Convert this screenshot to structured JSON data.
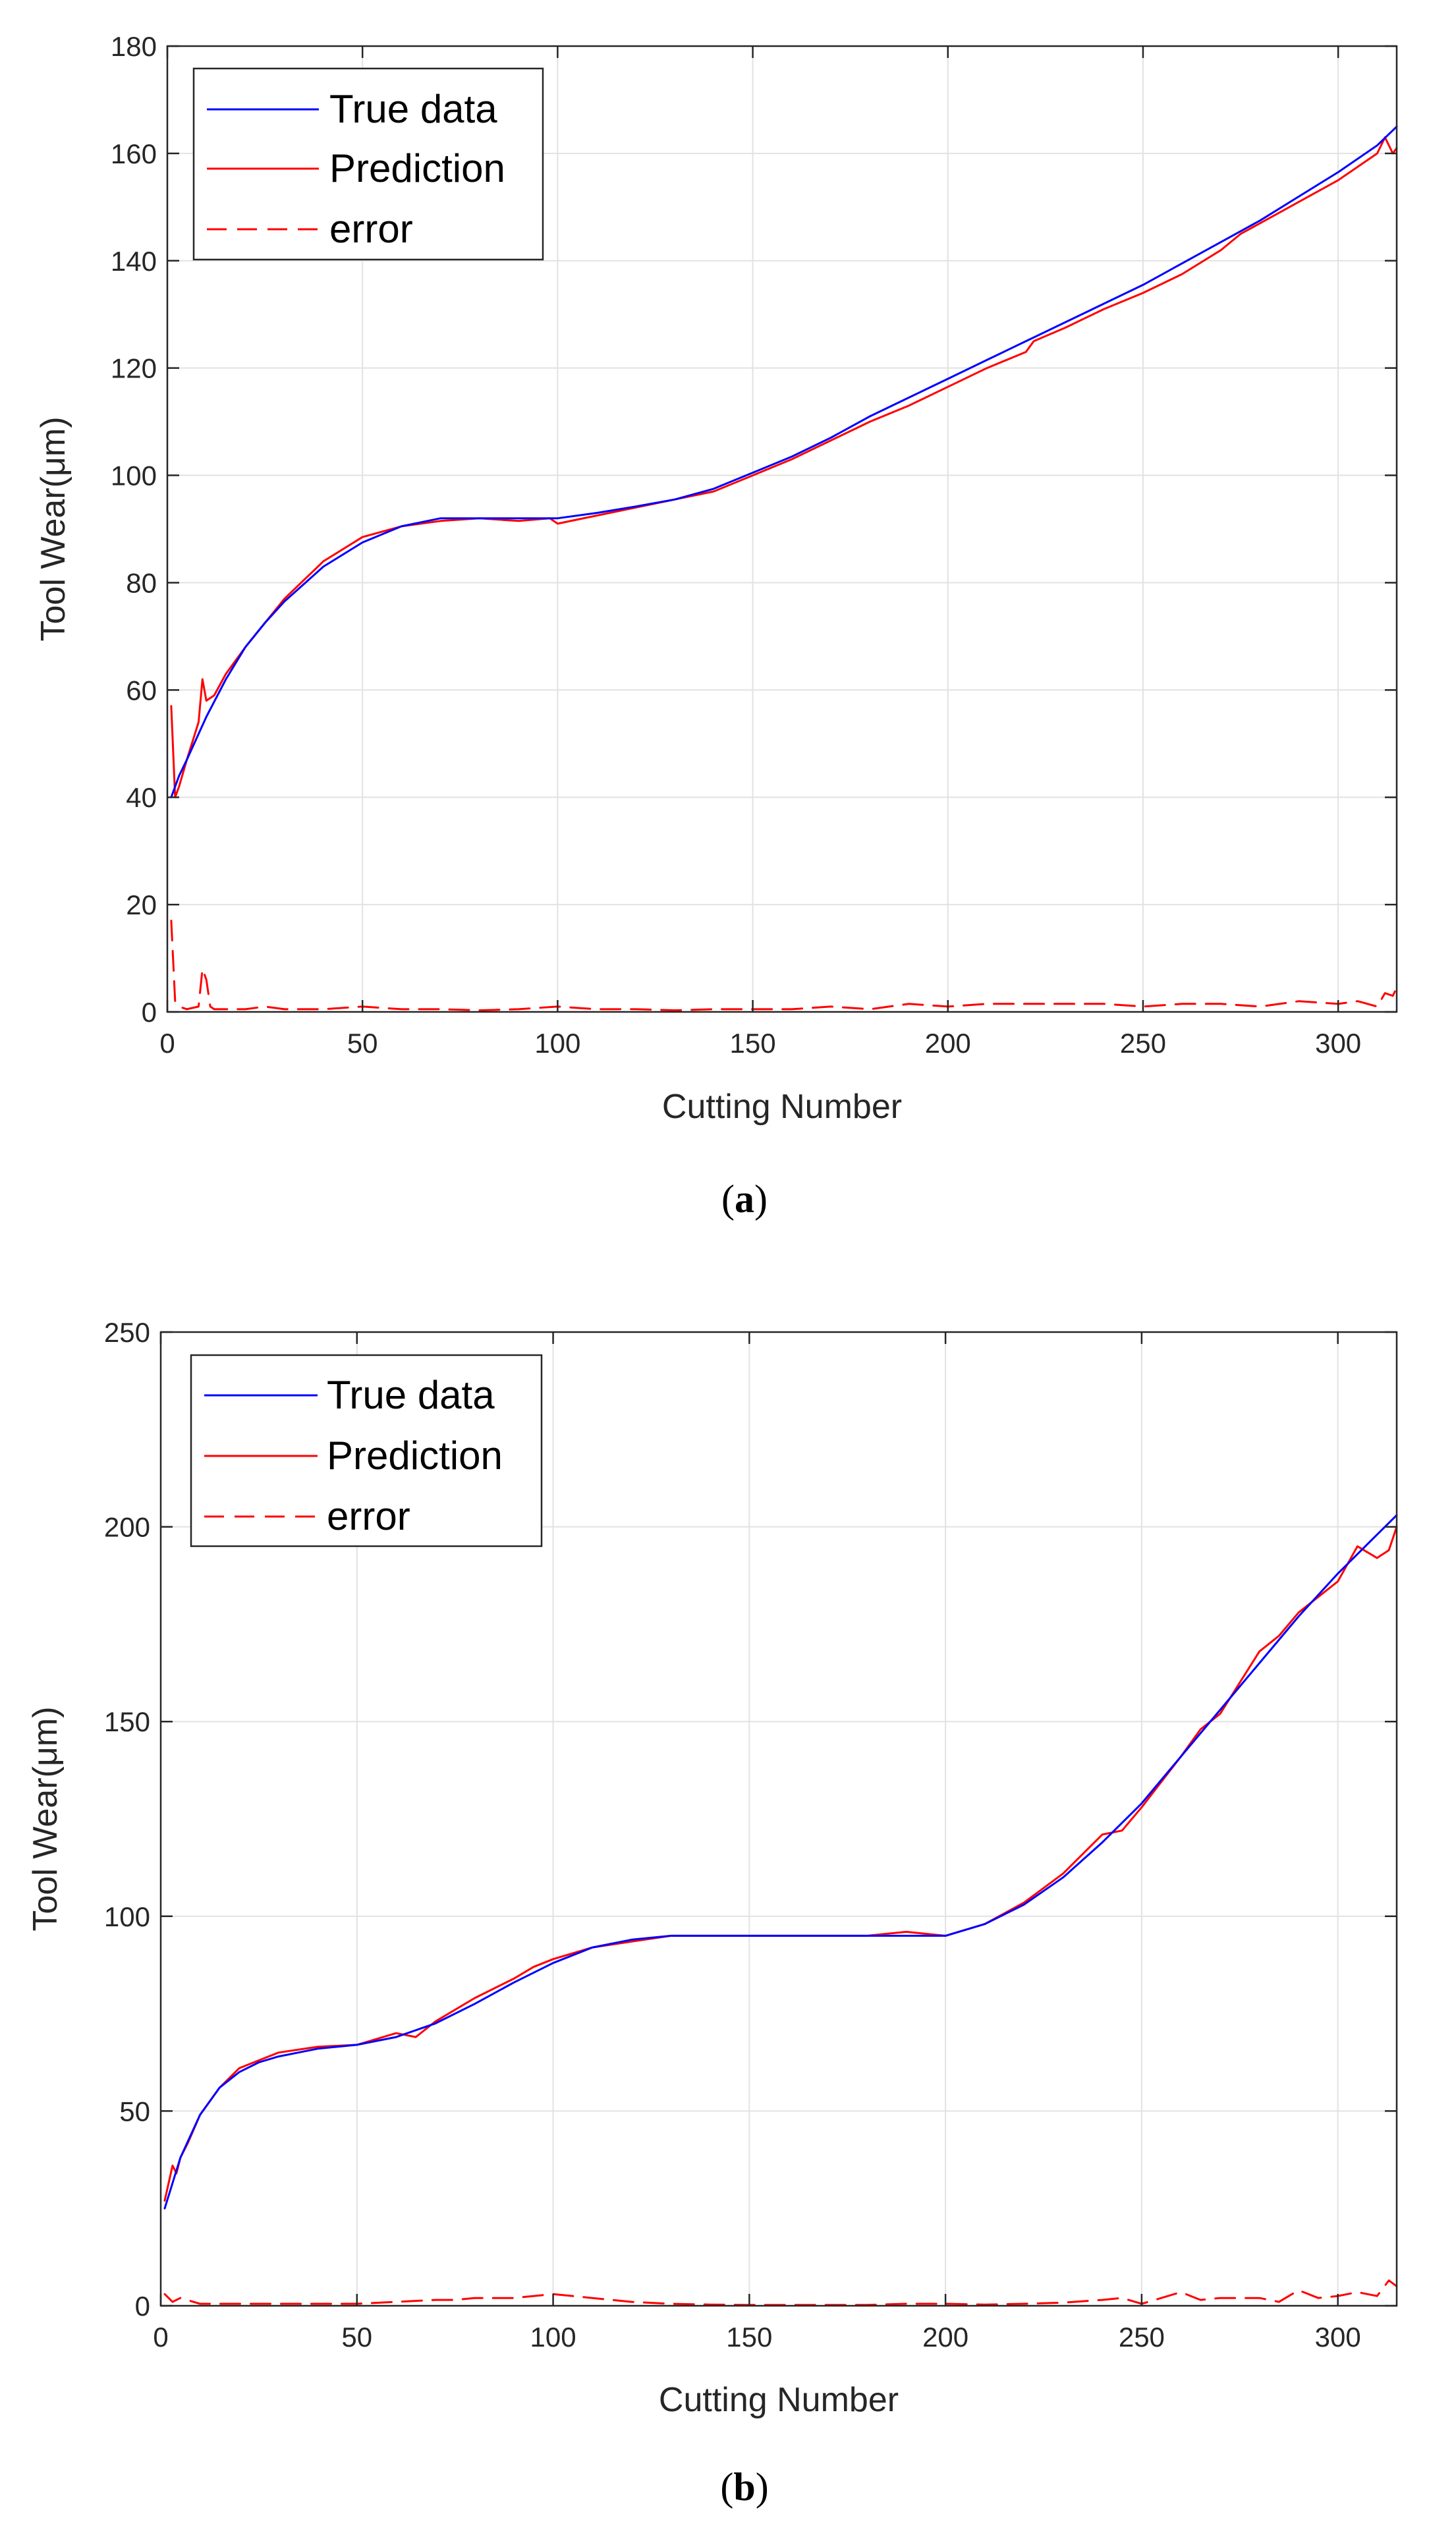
{
  "chart_data": [
    {
      "type": "line",
      "caption_letter": "a",
      "xlabel": "Cutting Number",
      "ylabel": "Tool Wear(μm)",
      "xlim": [
        0,
        315
      ],
      "ylim": [
        0,
        180
      ],
      "xticks": [
        0,
        50,
        100,
        150,
        200,
        250,
        300
      ],
      "yticks": [
        0,
        20,
        40,
        60,
        80,
        100,
        120,
        140,
        160,
        180
      ],
      "legend": {
        "position": "top-left",
        "entries": [
          "True data",
          "Prediction",
          "error"
        ]
      },
      "series": [
        {
          "name": "True data",
          "color": "#0000ff",
          "style": "solid",
          "x": [
            1,
            3,
            5,
            10,
            15,
            20,
            25,
            30,
            40,
            50,
            60,
            70,
            80,
            90,
            100,
            110,
            120,
            130,
            140,
            150,
            160,
            170,
            180,
            190,
            200,
            210,
            220,
            230,
            240,
            250,
            260,
            270,
            280,
            290,
            300,
            310,
            315
          ],
          "values": [
            40,
            44,
            47,
            55,
            62,
            68,
            72.5,
            76.5,
            83,
            87.5,
            90.5,
            92,
            92,
            92,
            92,
            93,
            94.2,
            95.5,
            97.5,
            100.5,
            103.5,
            107,
            111,
            114.5,
            118,
            121.5,
            125,
            128.5,
            132,
            135.5,
            139.5,
            143.5,
            147.5,
            152,
            156.5,
            161.5,
            165
          ]
        },
        {
          "name": "Prediction",
          "color": "#ff0000",
          "style": "solid",
          "x": [
            1,
            2,
            3,
            5,
            8,
            9,
            10,
            12,
            15,
            20,
            30,
            40,
            50,
            60,
            70,
            80,
            90,
            98,
            100,
            110,
            120,
            130,
            140,
            150,
            160,
            170,
            180,
            190,
            200,
            210,
            220,
            222,
            230,
            240,
            250,
            260,
            270,
            275,
            280,
            290,
            300,
            310,
            312,
            314,
            315
          ],
          "values": [
            57,
            40,
            42,
            47,
            54,
            62,
            58,
            59,
            63,
            68,
            77,
            84,
            88.5,
            90.5,
            91.5,
            92,
            91.5,
            92,
            91,
            92.5,
            94,
            95.5,
            97,
            100,
            103,
            106.5,
            110,
            113,
            116.5,
            120,
            123,
            125,
            127.5,
            131,
            134,
            137.5,
            142,
            145,
            147,
            151,
            155,
            160,
            163,
            160,
            161
          ]
        },
        {
          "name": "error",
          "color": "#ff0000",
          "style": "dashed",
          "x": [
            1,
            2,
            3,
            5,
            8,
            9,
            10,
            11,
            12,
            15,
            20,
            25,
            30,
            40,
            50,
            60,
            70,
            80,
            90,
            100,
            110,
            120,
            130,
            140,
            150,
            160,
            170,
            180,
            190,
            200,
            210,
            220,
            230,
            240,
            250,
            260,
            270,
            280,
            290,
            300,
            305,
            310,
            312,
            314,
            315
          ],
          "values": [
            17,
            2,
            1,
            0.5,
            1,
            8,
            6,
            1,
            0.5,
            0.5,
            0.5,
            1,
            0.5,
            0.5,
            1,
            0.5,
            0.5,
            0.3,
            0.5,
            1,
            0.5,
            0.5,
            0.3,
            0.5,
            0.5,
            0.5,
            1,
            0.5,
            1.5,
            1,
            1.5,
            1.5,
            1.5,
            1.5,
            1,
            1.5,
            1.5,
            1,
            2,
            1.5,
            2,
            1,
            3.5,
            3,
            4.5
          ]
        }
      ]
    },
    {
      "type": "line",
      "caption_letter": "b",
      "xlabel": "Cutting Number",
      "ylabel": "Tool Wear(μm)",
      "xlim": [
        0,
        315
      ],
      "ylim": [
        0,
        250
      ],
      "xticks": [
        0,
        50,
        100,
        150,
        200,
        250,
        300
      ],
      "yticks": [
        0,
        50,
        100,
        150,
        200,
        250
      ],
      "legend": {
        "position": "top-left",
        "entries": [
          "True data",
          "Prediction",
          "error"
        ]
      },
      "series": [
        {
          "name": "True data",
          "color": "#0000ff",
          "style": "solid",
          "x": [
            1,
            5,
            10,
            15,
            20,
            25,
            30,
            40,
            50,
            60,
            70,
            80,
            90,
            100,
            110,
            120,
            130,
            140,
            150,
            160,
            170,
            180,
            190,
            200,
            210,
            220,
            230,
            240,
            250,
            260,
            270,
            280,
            290,
            300,
            310,
            315
          ],
          "values": [
            25,
            38,
            49,
            56,
            60,
            62.5,
            64,
            66,
            67,
            69,
            72.5,
            77.5,
            83,
            88,
            92,
            94,
            95,
            95,
            95,
            95,
            95,
            95,
            95,
            95,
            98,
            103,
            110,
            119,
            129,
            141,
            153,
            165,
            177,
            188,
            198,
            203
          ]
        },
        {
          "name": "Prediction",
          "color": "#ff0000",
          "style": "solid",
          "x": [
            1,
            3,
            4,
            5,
            7,
            10,
            15,
            20,
            25,
            30,
            40,
            50,
            60,
            65,
            70,
            80,
            90,
            95,
            100,
            110,
            120,
            130,
            140,
            150,
            160,
            170,
            180,
            190,
            200,
            210,
            220,
            230,
            240,
            245,
            250,
            260,
            265,
            270,
            280,
            285,
            290,
            300,
            305,
            310,
            313,
            315
          ],
          "values": [
            27,
            36,
            34,
            38,
            42,
            49,
            56,
            61,
            63,
            65,
            66.5,
            67,
            70,
            69,
            73,
            79,
            84,
            87,
            89,
            92,
            93.5,
            95,
            95,
            95,
            95,
            95,
            95,
            96,
            95,
            98,
            103.5,
            111,
            121,
            122,
            128,
            141,
            148,
            152,
            168,
            172,
            178,
            186,
            195,
            192,
            194,
            200
          ]
        },
        {
          "name": "error",
          "color": "#ff0000",
          "style": "dashed",
          "x": [
            1,
            3,
            5,
            10,
            20,
            30,
            40,
            50,
            60,
            70,
            75,
            80,
            90,
            95,
            100,
            110,
            120,
            130,
            140,
            150,
            160,
            170,
            180,
            190,
            200,
            210,
            220,
            230,
            240,
            245,
            250,
            255,
            260,
            265,
            270,
            280,
            285,
            290,
            295,
            300,
            305,
            310,
            313,
            315
          ],
          "values": [
            3,
            1,
            2,
            0.5,
            0.5,
            0.5,
            0.5,
            0.5,
            1,
            1.5,
            1.5,
            2,
            2,
            2.5,
            3,
            2,
            1,
            0.5,
            0.3,
            0.2,
            0.2,
            0.2,
            0.2,
            0.5,
            0.5,
            0.3,
            0.5,
            0.8,
            1.5,
            2,
            0.5,
            2,
            3.5,
            1.5,
            2,
            2,
            1,
            4,
            2,
            2.5,
            3.5,
            2.5,
            6.5,
            5
          ]
        }
      ]
    }
  ]
}
